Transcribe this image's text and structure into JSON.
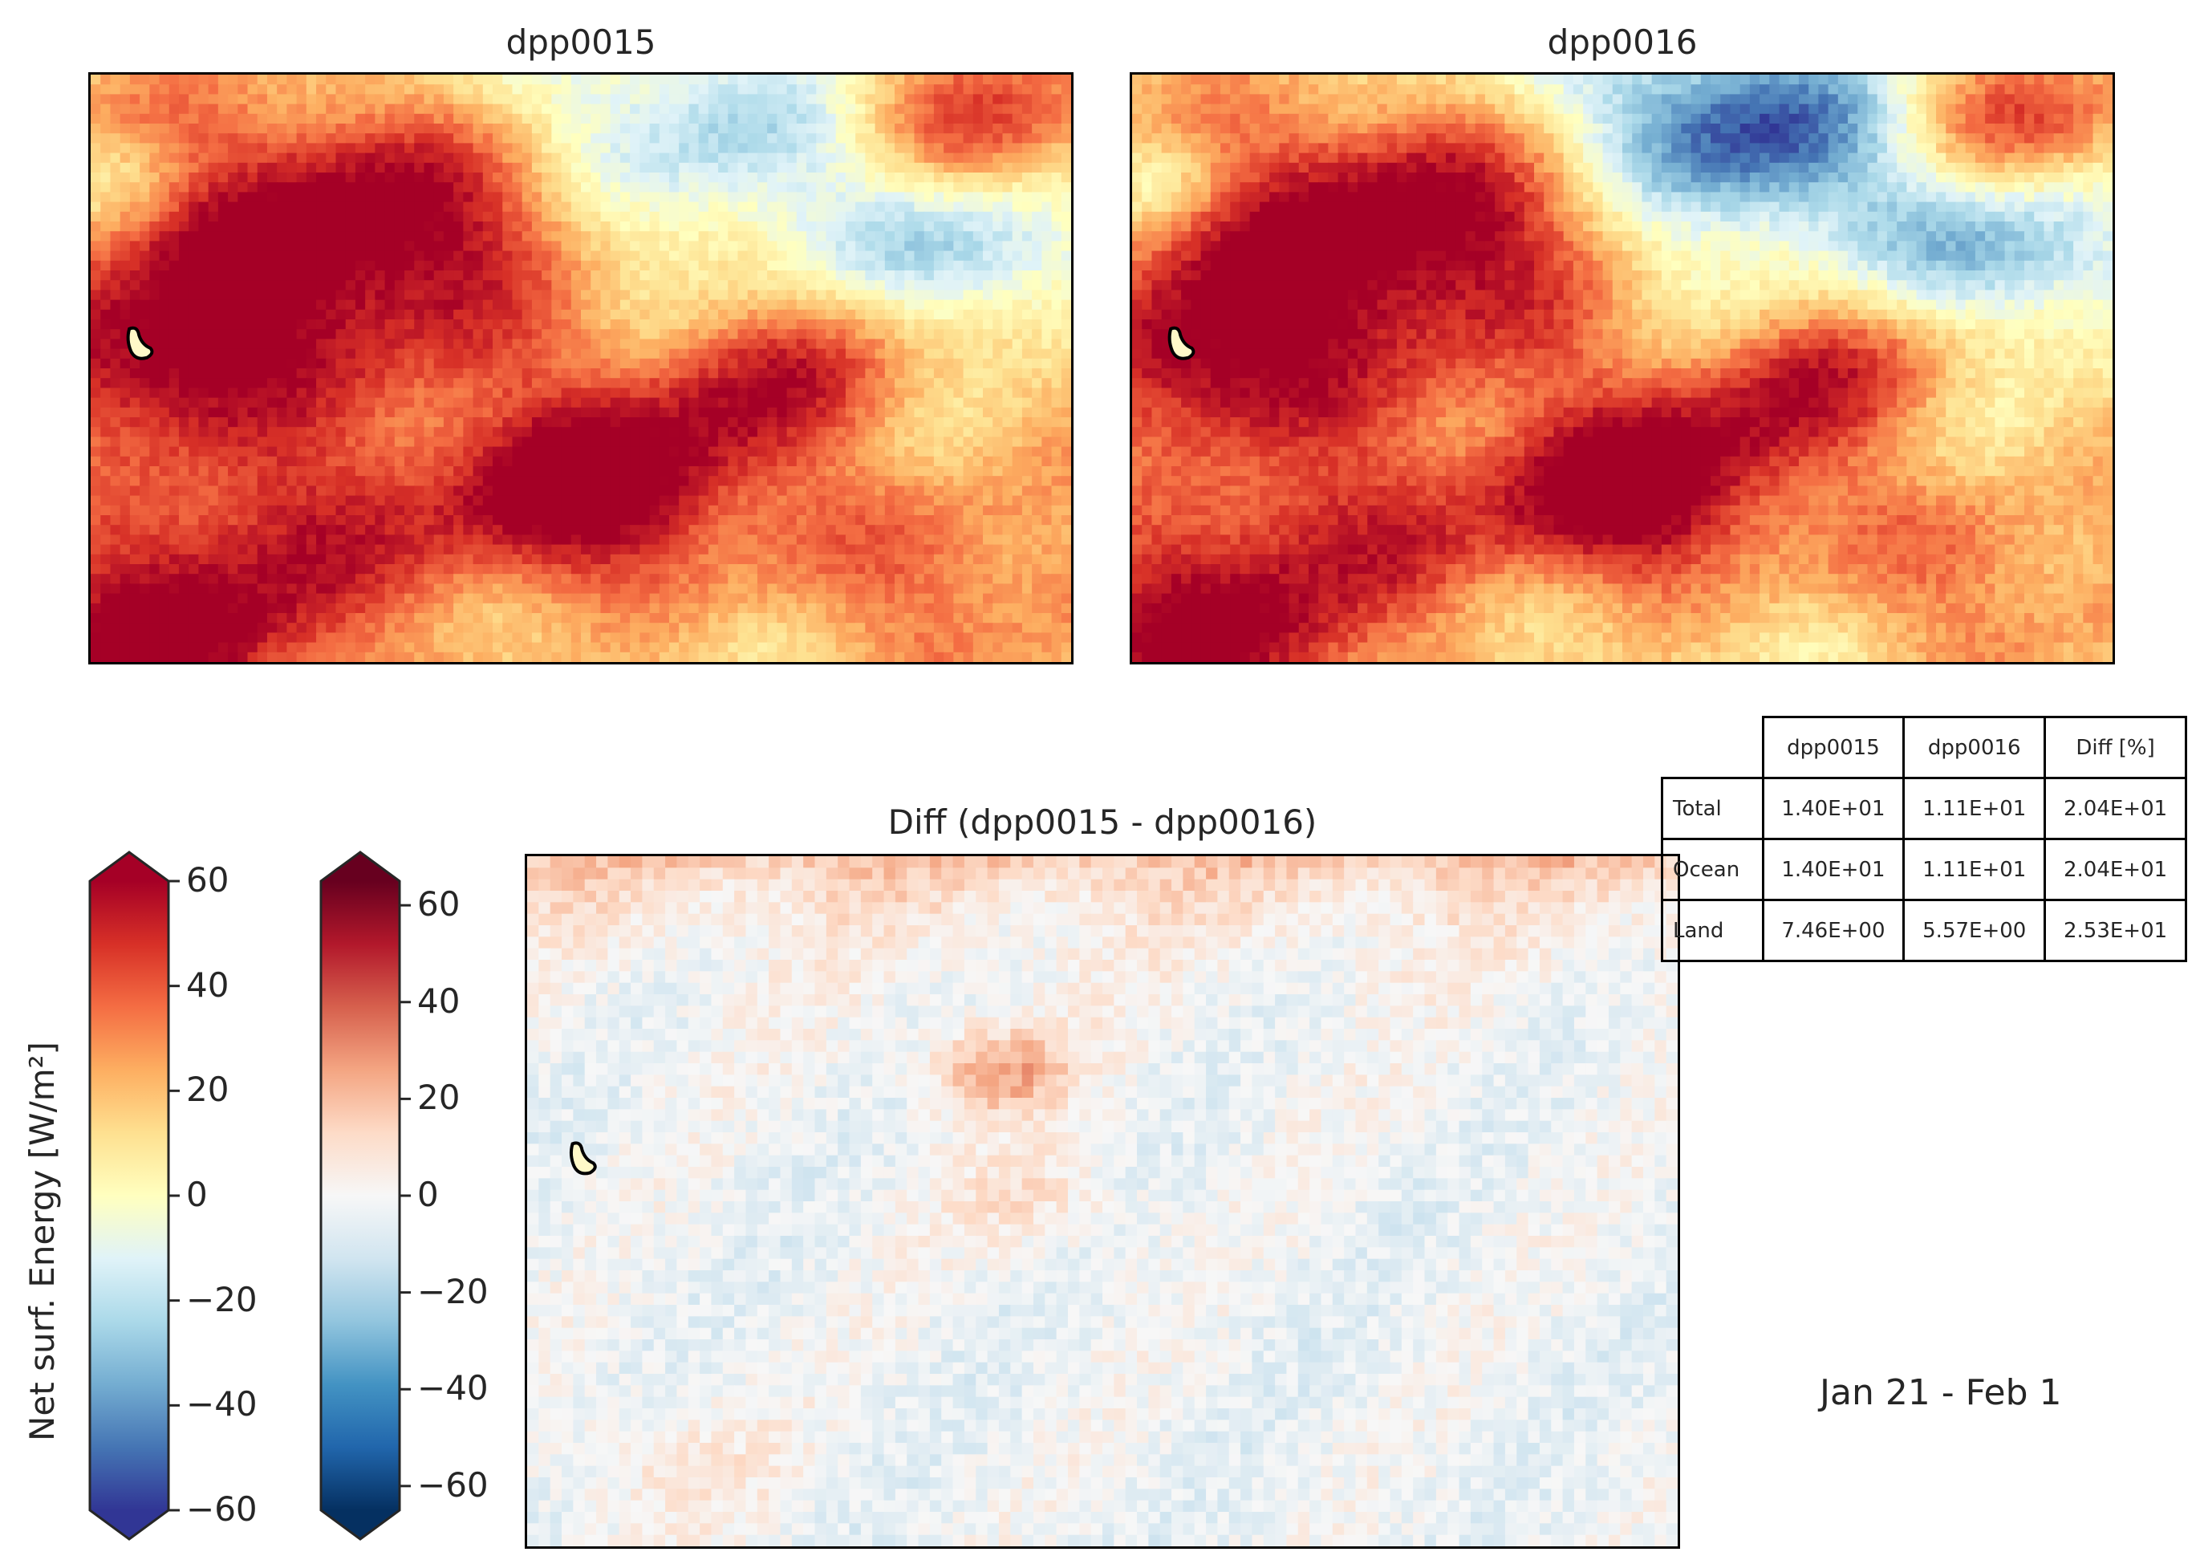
{
  "colors": {
    "energy_cmap": [
      "#313695",
      "#4575b4",
      "#74add1",
      "#abd9e9",
      "#e0f3f8",
      "#ffffbf",
      "#fee090",
      "#fdae61",
      "#f46d43",
      "#d73027",
      "#a50026"
    ],
    "diff_cmap": [
      "#053061",
      "#2166ac",
      "#4393c3",
      "#92c5de",
      "#d1e5f0",
      "#f7f7f7",
      "#fddbc7",
      "#f4a582",
      "#d6604d",
      "#b2182b",
      "#67001f"
    ]
  },
  "chart_data": [
    {
      "type": "heatmap",
      "title": "dpp0015",
      "colorbar": "energy",
      "vmin": -60,
      "vmax": 60
    },
    {
      "type": "heatmap",
      "title": "dpp0016",
      "colorbar": "energy",
      "vmin": -60,
      "vmax": 60
    },
    {
      "type": "heatmap",
      "title": "Diff (dpp0015 - dpp0016)",
      "colorbar": "diff",
      "vmin": -65,
      "vmax": 65
    },
    {
      "type": "table",
      "columns": [
        "dpp0015",
        "dpp0016",
        "Diff [%]"
      ],
      "rows": [
        {
          "label": "Total",
          "values": [
            "1.40E+01",
            "1.11E+01",
            "2.04E+01"
          ]
        },
        {
          "label": "Ocean",
          "values": [
            "1.40E+01",
            "1.11E+01",
            "2.04E+01"
          ]
        },
        {
          "label": "Land",
          "values": [
            "7.46E+00",
            "5.57E+00",
            "2.53E+01"
          ]
        }
      ]
    }
  ],
  "colorbars": {
    "energy": {
      "label": "Net surf. Energy [W/m²]",
      "vmin": -60,
      "vmax": 60,
      "ticks": [
        {
          "value": 60,
          "label": "60"
        },
        {
          "value": 40,
          "label": "40"
        },
        {
          "value": 20,
          "label": "20"
        },
        {
          "value": 0,
          "label": "0"
        },
        {
          "value": -20,
          "label": "−20"
        },
        {
          "value": -40,
          "label": "−40"
        },
        {
          "value": -60,
          "label": "−60"
        }
      ]
    },
    "diff": {
      "vmin": -65,
      "vmax": 65,
      "ticks": [
        {
          "value": 60,
          "label": "60"
        },
        {
          "value": 40,
          "label": "40"
        },
        {
          "value": 20,
          "label": "20"
        },
        {
          "value": 0,
          "label": "0"
        },
        {
          "value": -20,
          "label": "−20"
        },
        {
          "value": -40,
          "label": "−40"
        },
        {
          "value": -60,
          "label": "−60"
        }
      ]
    }
  },
  "period": "Jan 21 - Feb  1"
}
